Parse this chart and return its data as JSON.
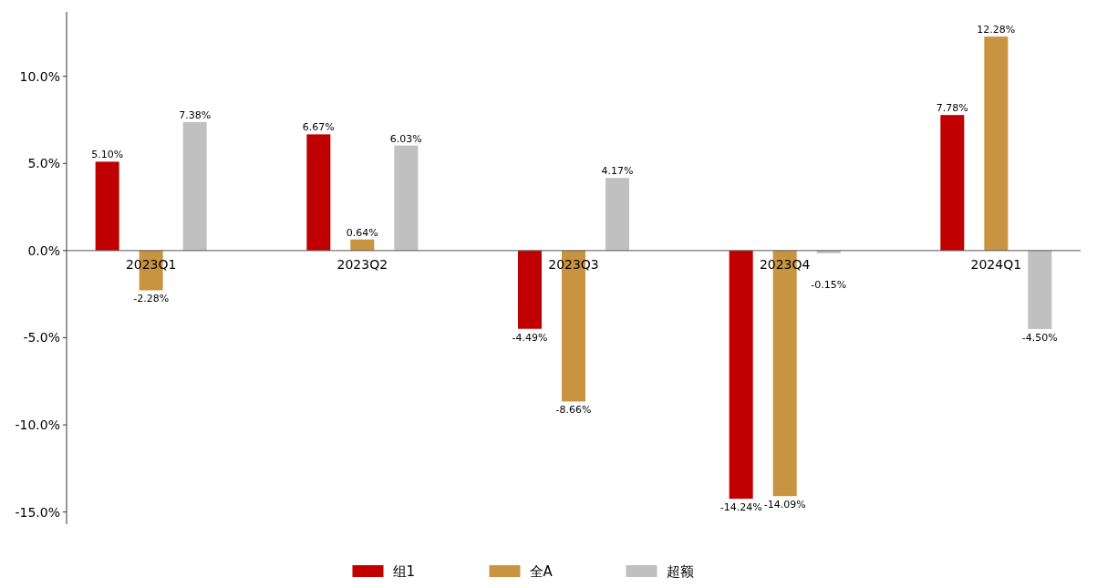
{
  "chart_data": {
    "type": "bar",
    "categories": [
      "2023Q1",
      "2023Q2",
      "2023Q3",
      "2023Q4",
      "2024Q1"
    ],
    "series": [
      {
        "name": "组1",
        "color": "#c00000",
        "values": [
          5.1,
          6.67,
          -4.49,
          -14.24,
          7.78
        ],
        "value_labels": [
          "5.10%",
          "6.67%",
          "-4.49%",
          "-14.24%",
          "7.78%"
        ]
      },
      {
        "name": "全A",
        "color": "#c89441",
        "values": [
          -2.28,
          0.64,
          -8.66,
          -14.09,
          12.28
        ],
        "value_labels": [
          "-2.28%",
          "0.64%",
          "-8.66%",
          "-14.09%",
          "12.28%"
        ]
      },
      {
        "name": "超额",
        "color": "#c0c0c0",
        "values": [
          7.38,
          6.03,
          4.17,
          -0.15,
          -4.5
        ],
        "value_labels": [
          "7.38%",
          "6.03%",
          "4.17%",
          "-0.15%",
          "-4.50%"
        ]
      }
    ],
    "ylim": [
      -15.7,
      13.7
    ],
    "yticks": [
      {
        "value": -15,
        "label": "-15.0%"
      },
      {
        "value": -10,
        "label": "-10.0%"
      },
      {
        "value": -5,
        "label": "-5.0%"
      },
      {
        "value": 0,
        "label": "0.0%"
      },
      {
        "value": 5,
        "label": "5.0%"
      },
      {
        "value": 10,
        "label": "10.0%"
      }
    ],
    "grid": false,
    "legend": "bottom"
  }
}
